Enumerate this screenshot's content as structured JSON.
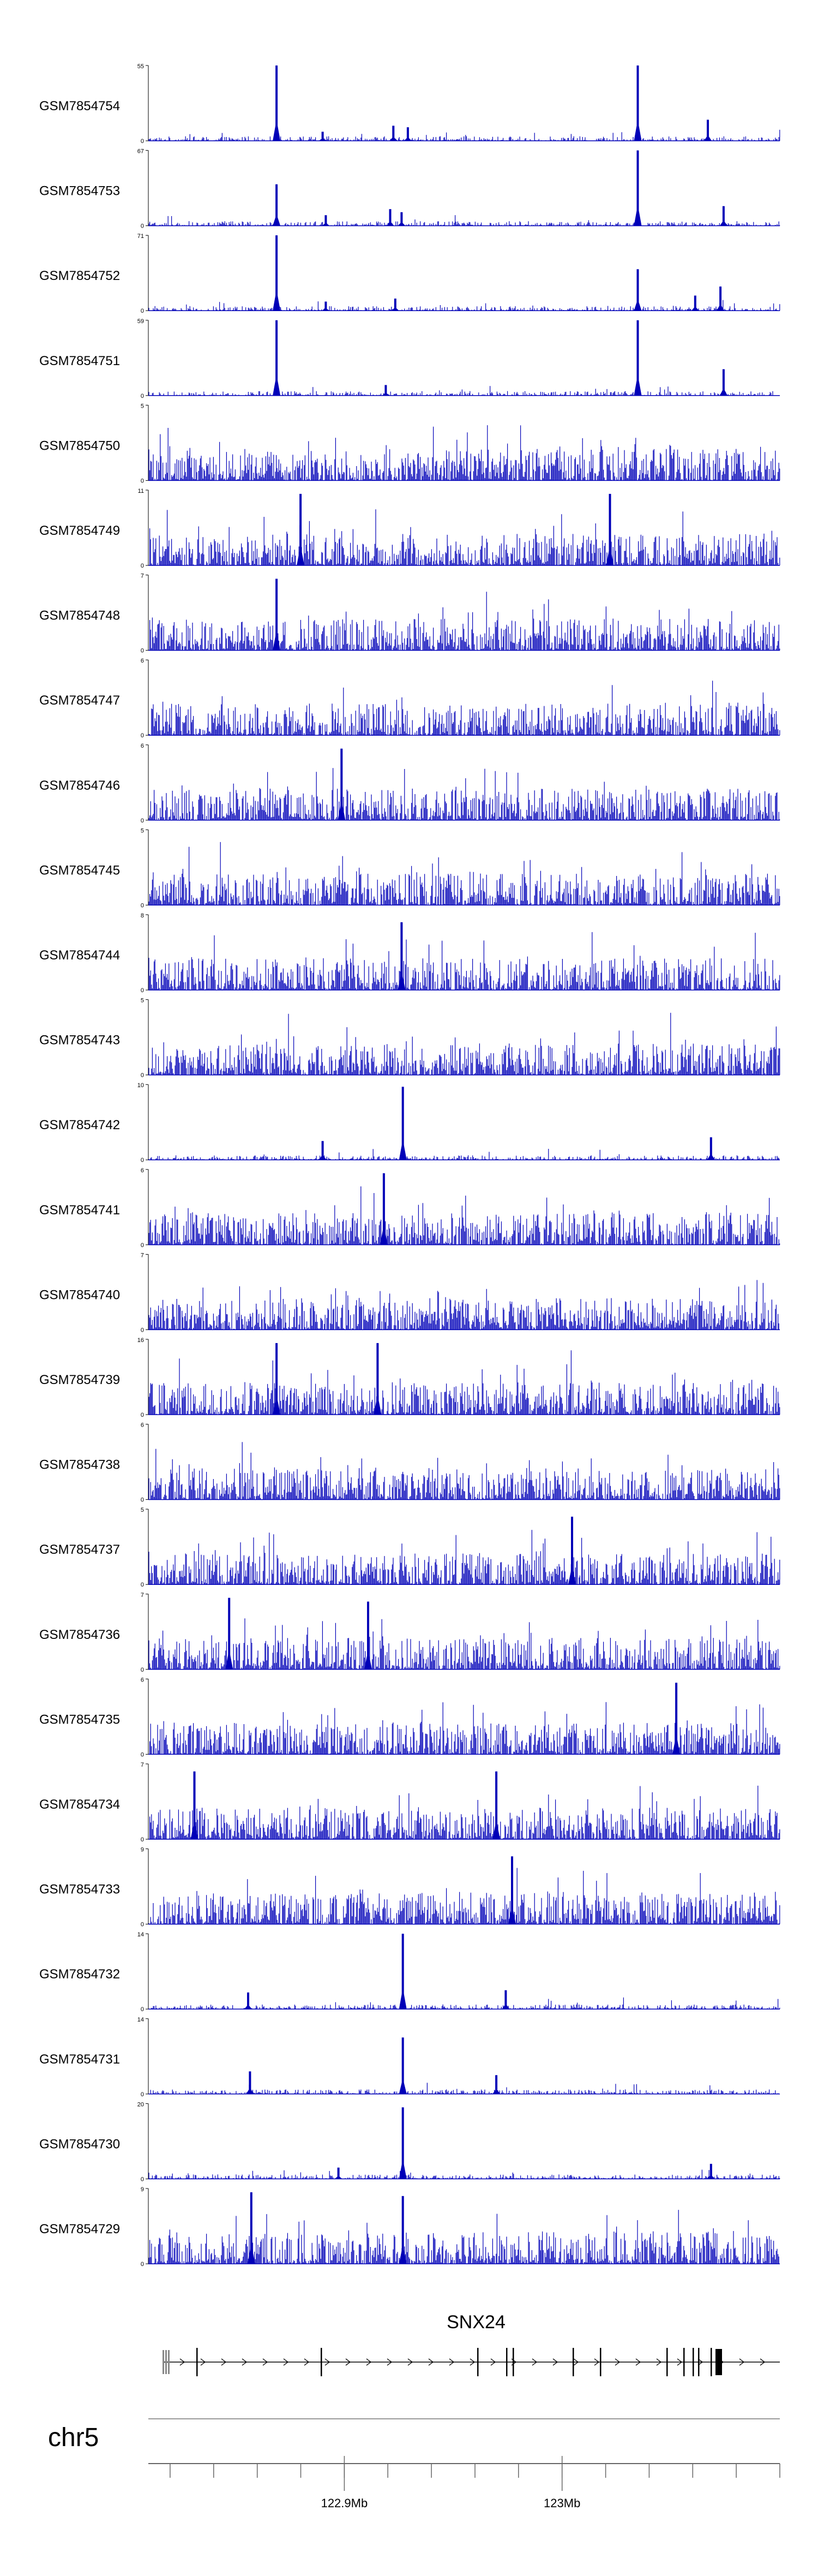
{
  "chart_data": {
    "type": "area",
    "title": "",
    "chromosome": "chr5",
    "gene": {
      "name": "SNX24",
      "strand": "+"
    },
    "x_range_mb": [
      122.81,
      123.1
    ],
    "x_ticks": [
      {
        "value": 122.9,
        "label": "122.9Mb"
      },
      {
        "value": 123.0,
        "label": "123Mb"
      }
    ],
    "series": [
      {
        "name": "GSM7854754",
        "ymin": "0",
        "ymax": "55",
        "profile": "peaky",
        "peaks": [
          [
            0.203,
            1.0
          ],
          [
            0.775,
            1.0
          ],
          [
            0.886,
            0.28
          ],
          [
            0.388,
            0.2
          ],
          [
            0.411,
            0.18
          ],
          [
            0.276,
            0.12
          ]
        ]
      },
      {
        "name": "GSM7854753",
        "ymin": "0",
        "ymax": "67",
        "profile": "peaky",
        "peaks": [
          [
            0.203,
            0.55
          ],
          [
            0.775,
            1.0
          ],
          [
            0.911,
            0.26
          ],
          [
            0.383,
            0.22
          ],
          [
            0.401,
            0.18
          ],
          [
            0.281,
            0.14
          ]
        ]
      },
      {
        "name": "GSM7854752",
        "ymin": "0",
        "ymax": "71",
        "profile": "peaky",
        "peaks": [
          [
            0.203,
            1.0
          ],
          [
            0.775,
            0.55
          ],
          [
            0.906,
            0.32
          ],
          [
            0.866,
            0.2
          ],
          [
            0.391,
            0.16
          ],
          [
            0.281,
            0.12
          ]
        ]
      },
      {
        "name": "GSM7854751",
        "ymin": "0",
        "ymax": "59",
        "profile": "peaky",
        "peaks": [
          [
            0.203,
            1.0
          ],
          [
            0.775,
            1.0
          ],
          [
            0.911,
            0.35
          ],
          [
            0.376,
            0.14
          ]
        ]
      },
      {
        "name": "GSM7854750",
        "ymin": "0",
        "ymax": "5",
        "profile": "noisy",
        "peaks": []
      },
      {
        "name": "GSM7854749",
        "ymin": "0",
        "ymax": "11",
        "profile": "noisy",
        "peaks": [
          [
            0.241,
            0.95
          ],
          [
            0.731,
            0.95
          ]
        ]
      },
      {
        "name": "GSM7854748",
        "ymin": "0",
        "ymax": "7",
        "profile": "noisy",
        "peaks": [
          [
            0.203,
            0.95
          ]
        ]
      },
      {
        "name": "GSM7854747",
        "ymin": "0",
        "ymax": "6",
        "profile": "noisy",
        "peaks": []
      },
      {
        "name": "GSM7854746",
        "ymin": "0",
        "ymax": "6",
        "profile": "noisy",
        "peaks": [
          [
            0.306,
            0.95
          ]
        ]
      },
      {
        "name": "GSM7854745",
        "ymin": "0",
        "ymax": "5",
        "profile": "noisy",
        "peaks": []
      },
      {
        "name": "GSM7854744",
        "ymin": "0",
        "ymax": "8",
        "profile": "noisy",
        "peaks": [
          [
            0.401,
            0.9
          ]
        ]
      },
      {
        "name": "GSM7854743",
        "ymin": "0",
        "ymax": "5",
        "profile": "noisy",
        "peaks": []
      },
      {
        "name": "GSM7854742",
        "ymin": "0",
        "ymax": "10",
        "profile": "peaky",
        "peaks": [
          [
            0.403,
            0.97
          ],
          [
            0.891,
            0.3
          ],
          [
            0.276,
            0.25
          ]
        ]
      },
      {
        "name": "GSM7854741",
        "ymin": "0",
        "ymax": "6",
        "profile": "noisy",
        "peaks": [
          [
            0.373,
            0.95
          ]
        ]
      },
      {
        "name": "GSM7854740",
        "ymin": "0",
        "ymax": "7",
        "profile": "noisy",
        "peaks": []
      },
      {
        "name": "GSM7854739",
        "ymin": "0",
        "ymax": "16",
        "profile": "noisy",
        "peaks": [
          [
            0.203,
            0.95
          ],
          [
            0.363,
            0.95
          ]
        ]
      },
      {
        "name": "GSM7854738",
        "ymin": "0",
        "ymax": "6",
        "profile": "noisy",
        "peaks": []
      },
      {
        "name": "GSM7854737",
        "ymin": "0",
        "ymax": "5",
        "profile": "noisy",
        "peaks": [
          [
            0.671,
            0.9
          ]
        ]
      },
      {
        "name": "GSM7854736",
        "ymin": "0",
        "ymax": "7",
        "profile": "noisy",
        "peaks": [
          [
            0.128,
            0.95
          ],
          [
            0.348,
            0.9
          ]
        ]
      },
      {
        "name": "GSM7854735",
        "ymin": "0",
        "ymax": "6",
        "profile": "noisy",
        "peaks": [
          [
            0.836,
            0.95
          ]
        ]
      },
      {
        "name": "GSM7854734",
        "ymin": "0",
        "ymax": "7",
        "profile": "noisy",
        "peaks": [
          [
            0.073,
            0.9
          ],
          [
            0.551,
            0.9
          ]
        ]
      },
      {
        "name": "GSM7854733",
        "ymin": "0",
        "ymax": "9",
        "profile": "noisy",
        "peaks": [
          [
            0.576,
            0.9
          ]
        ]
      },
      {
        "name": "GSM7854732",
        "ymin": "0",
        "ymax": "14",
        "profile": "peaky",
        "peaks": [
          [
            0.403,
            1.0
          ],
          [
            0.158,
            0.22
          ],
          [
            0.566,
            0.25
          ]
        ]
      },
      {
        "name": "GSM7854731",
        "ymin": "0",
        "ymax": "14",
        "profile": "peaky",
        "peaks": [
          [
            0.403,
            0.75
          ],
          [
            0.161,
            0.3
          ],
          [
            0.551,
            0.25
          ]
        ]
      },
      {
        "name": "GSM7854730",
        "ymin": "0",
        "ymax": "20",
        "profile": "peaky",
        "peaks": [
          [
            0.403,
            0.95
          ],
          [
            0.891,
            0.2
          ],
          [
            0.301,
            0.15
          ]
        ]
      },
      {
        "name": "GSM7854729",
        "ymin": "0",
        "ymax": "9",
        "profile": "noisy",
        "peaks": [
          [
            0.163,
            0.95
          ],
          [
            0.403,
            0.9
          ]
        ]
      }
    ]
  },
  "colors": {
    "signal": "#0000b8",
    "axis": "#000000",
    "gene_line": "#000000",
    "exon_gray": "#888888",
    "ideogram_line": "#999999",
    "ruler": "#666666"
  }
}
